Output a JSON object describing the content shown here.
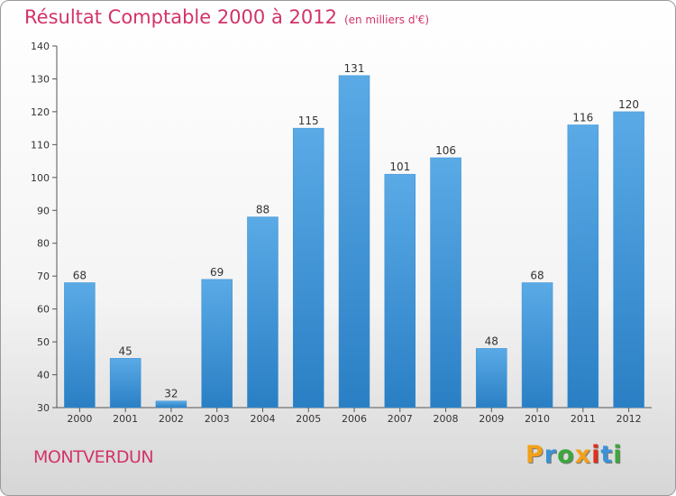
{
  "header": {
    "title": "Résultat Comptable 2000 à 2012",
    "subtitle": "(en milliers d'€)"
  },
  "footer": {
    "city": "MONTVERDUN",
    "logo": {
      "text": "Proxiti",
      "colors": [
        "#f2a11a",
        "#3a92d8",
        "#3aa83a",
        "#f2a11a",
        "#e0301e",
        "#3a92d8",
        "#3aa83a"
      ]
    }
  },
  "colors": {
    "bar_top": "#5aaae6",
    "bar_bottom": "#2a7fc4",
    "accent": "#d2336b"
  },
  "chart_data": {
    "type": "bar",
    "title": "Résultat Comptable 2000 à 2012",
    "subtitle": "(en milliers d'€)",
    "categories": [
      "2000",
      "2001",
      "2002",
      "2003",
      "2004",
      "2005",
      "2006",
      "2007",
      "2008",
      "2009",
      "2010",
      "2011",
      "2012"
    ],
    "values": [
      68,
      45,
      32,
      69,
      88,
      115,
      131,
      101,
      106,
      48,
      68,
      116,
      120
    ],
    "ylim": [
      30,
      140
    ],
    "yticks": [
      30,
      40,
      50,
      60,
      70,
      80,
      90,
      100,
      110,
      120,
      130,
      140
    ],
    "grid": false,
    "xlabel": "",
    "ylabel": ""
  }
}
